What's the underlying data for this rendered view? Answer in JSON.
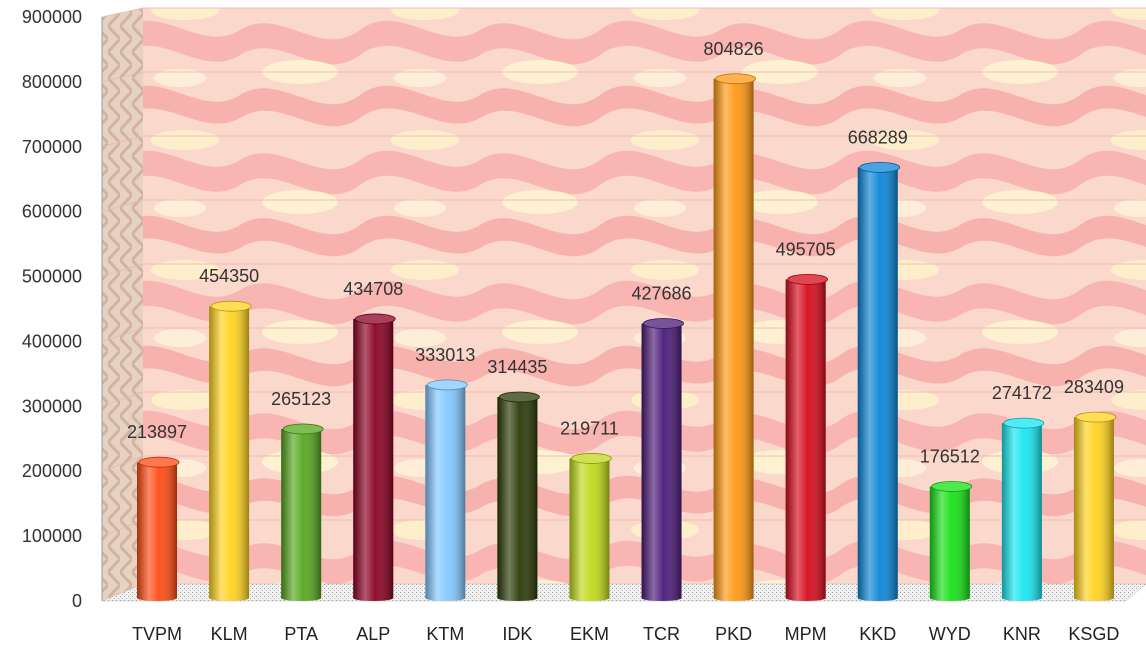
{
  "chart_data": {
    "type": "bar",
    "title": "",
    "xlabel": "",
    "ylabel": "",
    "ylim": [
      0,
      900000
    ],
    "y_ticks": [
      "0",
      "100000",
      "200000",
      "300000",
      "400000",
      "500000",
      "600000",
      "700000",
      "800000",
      "900000"
    ],
    "categories": [
      "TVPM",
      "KLM",
      "PTA",
      "ALP",
      "KTM",
      "IDK",
      "EKM",
      "TCR",
      "PKD",
      "MPM",
      "KKD",
      "WYD",
      "KNR",
      "KSGD"
    ],
    "values": [
      213897,
      454350,
      265123,
      434708,
      333013,
      314435,
      219711,
      427686,
      804826,
      495705,
      668289,
      176512,
      274172,
      283409
    ],
    "data_labels": [
      "213897",
      "454350",
      "265123",
      "434708",
      "333013",
      "314435",
      "219711",
      "427686",
      "804826",
      "495705",
      "668289",
      "176512",
      "274172",
      "283409"
    ],
    "bar_colors": [
      "#ff4a12",
      "#ffd21e",
      "#55a61e",
      "#8a0022",
      "#82c8ff",
      "#2a3a06",
      "#bfd81a",
      "#4a1a78",
      "#ff9812",
      "#d60a1a",
      "#0a86d6",
      "#16e016",
      "#16e6f0",
      "#ffd21e"
    ],
    "grid": true,
    "legend": "none"
  }
}
